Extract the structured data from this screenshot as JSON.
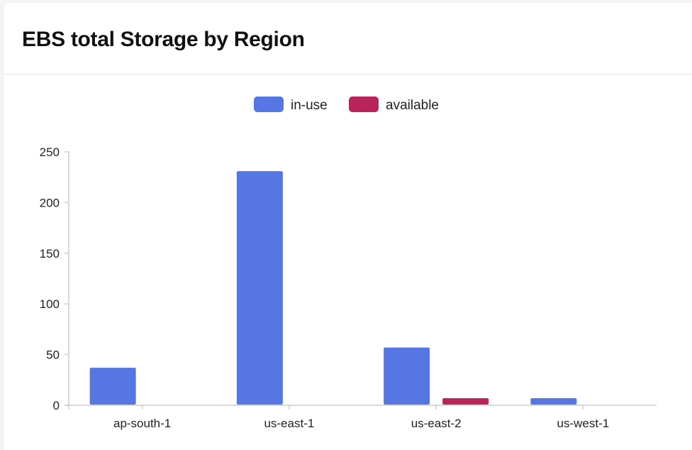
{
  "header": {
    "title": "EBS total Storage by Region"
  },
  "colors": {
    "in_use": "#5677e3",
    "available": "#ba2559",
    "axis": "#cccccc"
  },
  "chart_data": {
    "type": "bar",
    "title": "EBS total Storage by Region",
    "xlabel": "",
    "ylabel": "",
    "categories": [
      "ap-south-1",
      "us-east-1",
      "us-east-2",
      "us-west-1"
    ],
    "series": [
      {
        "name": "in-use",
        "values": [
          37,
          231,
          57,
          7
        ]
      },
      {
        "name": "available",
        "values": [
          0,
          0,
          7,
          0
        ]
      }
    ],
    "ylim": [
      0,
      250
    ],
    "yticks": [
      0,
      50,
      100,
      150,
      200,
      250
    ],
    "grid": false,
    "legend": "top-center"
  }
}
